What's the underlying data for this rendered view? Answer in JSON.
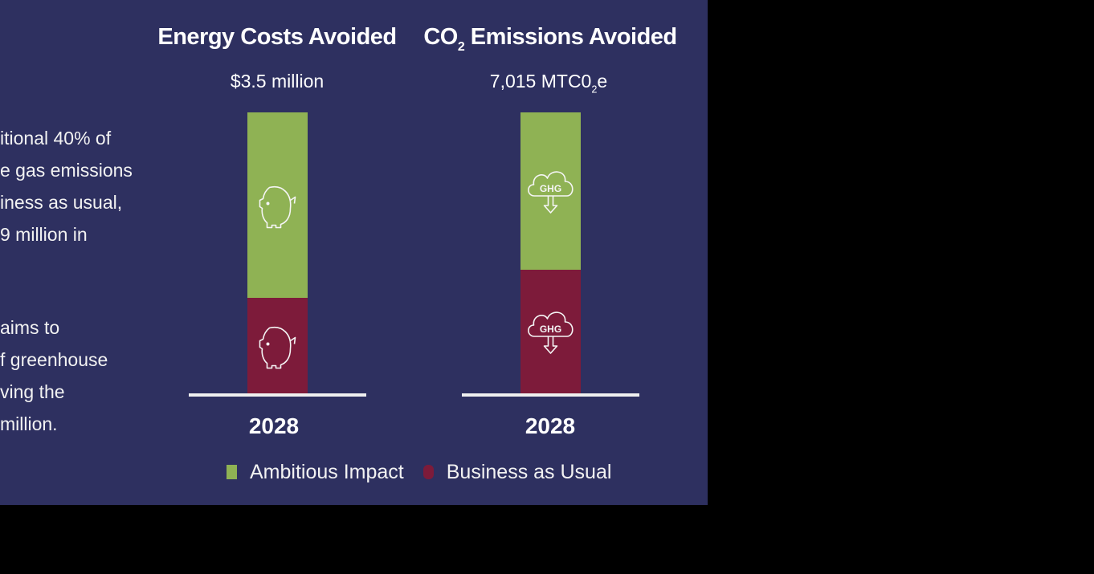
{
  "left_text": {
    "paragraph1": [
      "itional 40% of",
      "e gas emissions",
      "iness as usual,",
      "9 million in"
    ],
    "paragraph2": [
      "aims to",
      "f greenhouse",
      "ving the",
      " million."
    ]
  },
  "colors": {
    "background": "#2e3060",
    "ambitious": "#8fb254",
    "business": "#7d1b3a",
    "baseline": "#f0f0f0",
    "icon_stroke": "#f5f5f5"
  },
  "legend": {
    "ambitious_label": "Ambitious Impact",
    "business_label": "Business as Usual"
  },
  "chart_data": [
    {
      "type": "bar",
      "stacked": true,
      "title": "Energy Costs Avoided",
      "value_label": "$3.5 million",
      "categories": [
        "2028"
      ],
      "series": [
        {
          "name": "Business as Usual",
          "values": [
            0.34
          ],
          "icon": "piggy-bank-icon"
        },
        {
          "name": "Ambitious Impact",
          "values": [
            0.66
          ],
          "icon": "piggy-bank-icon"
        }
      ],
      "ylim": [
        0,
        1
      ],
      "grid": false,
      "legend_position": "bottom"
    },
    {
      "type": "bar",
      "stacked": true,
      "title_main": "CO",
      "title_sub": "2",
      "title_rest": " Emissions Avoided",
      "value_main": "7,015 MTC0",
      "value_sub": "2",
      "value_rest": "e",
      "categories": [
        "2028"
      ],
      "series": [
        {
          "name": "Business as Usual",
          "values": [
            0.44
          ],
          "icon": "ghg-cloud-icon",
          "icon_text": "GHG"
        },
        {
          "name": "Ambitious Impact",
          "values": [
            0.56
          ],
          "icon": "ghg-cloud-icon",
          "icon_text": "GHG"
        }
      ],
      "ylim": [
        0,
        1
      ],
      "grid": false,
      "legend_position": "bottom"
    }
  ]
}
